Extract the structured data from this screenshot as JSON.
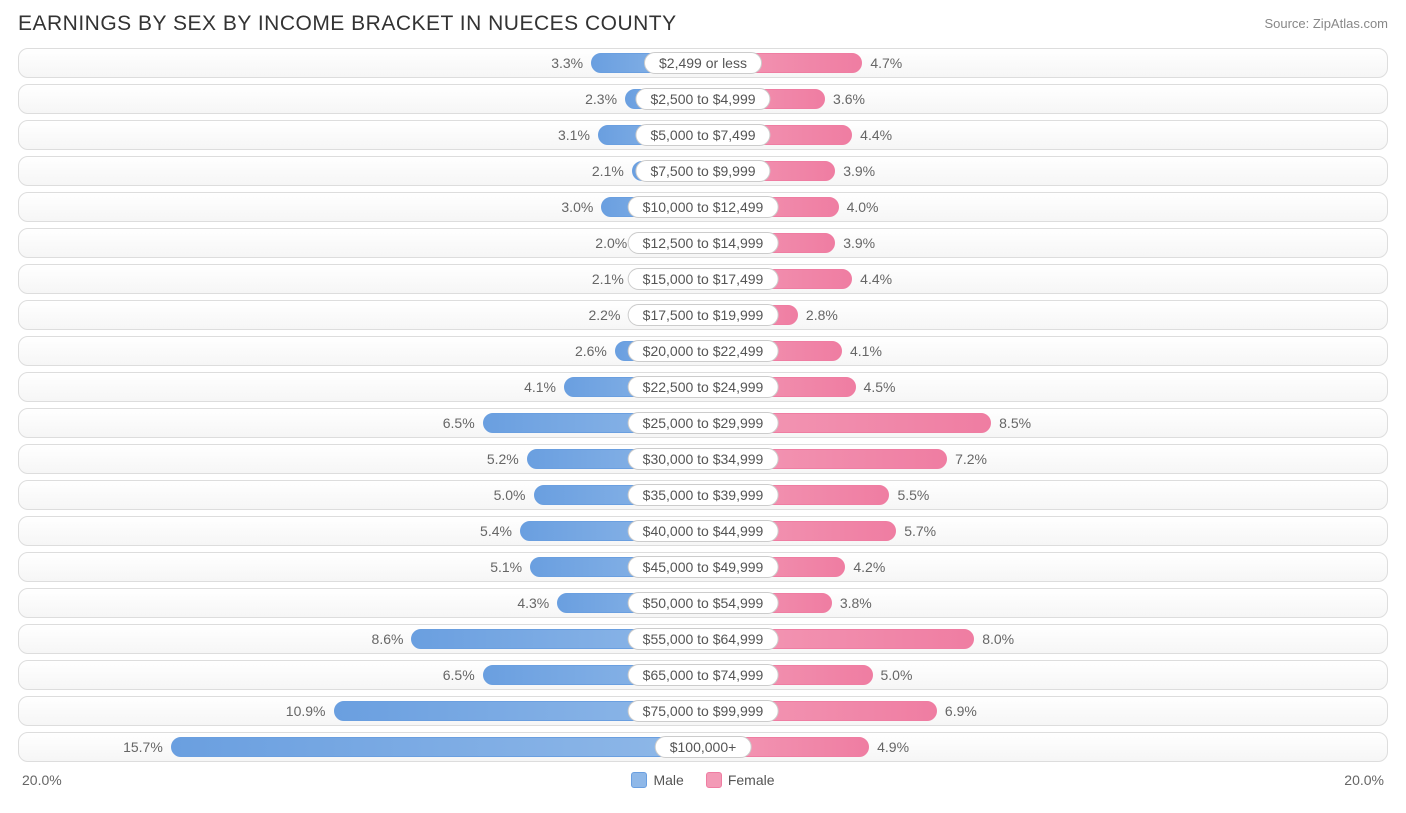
{
  "title": "EARNINGS BY SEX BY INCOME BRACKET IN NUECES COUNTY",
  "source": "Source: ZipAtlas.com",
  "axis_max_label": "20.0%",
  "axis_max_value": 20.0,
  "legend": {
    "male": "Male",
    "female": "Female"
  },
  "colors": {
    "male_base": "#8fb8e8",
    "male_border": "#6a9fe0",
    "female_base": "#f39ab6",
    "female_border": "#ef7da2",
    "row_border": "#dddddd",
    "pill_border": "#cccccc",
    "text": "#555555",
    "bg": "#ffffff"
  },
  "rows": [
    {
      "label": "$2,499 or less",
      "male": 3.3,
      "female": 4.7
    },
    {
      "label": "$2,500 to $4,999",
      "male": 2.3,
      "female": 3.6
    },
    {
      "label": "$5,000 to $7,499",
      "male": 3.1,
      "female": 4.4
    },
    {
      "label": "$7,500 to $9,999",
      "male": 2.1,
      "female": 3.9
    },
    {
      "label": "$10,000 to $12,499",
      "male": 3.0,
      "female": 4.0
    },
    {
      "label": "$12,500 to $14,999",
      "male": 2.0,
      "female": 3.9
    },
    {
      "label": "$15,000 to $17,499",
      "male": 2.1,
      "female": 4.4
    },
    {
      "label": "$17,500 to $19,999",
      "male": 2.2,
      "female": 2.8
    },
    {
      "label": "$20,000 to $22,499",
      "male": 2.6,
      "female": 4.1
    },
    {
      "label": "$22,500 to $24,999",
      "male": 4.1,
      "female": 4.5
    },
    {
      "label": "$25,000 to $29,999",
      "male": 6.5,
      "female": 8.5
    },
    {
      "label": "$30,000 to $34,999",
      "male": 5.2,
      "female": 7.2
    },
    {
      "label": "$35,000 to $39,999",
      "male": 5.0,
      "female": 5.5
    },
    {
      "label": "$40,000 to $44,999",
      "male": 5.4,
      "female": 5.7
    },
    {
      "label": "$45,000 to $49,999",
      "male": 5.1,
      "female": 4.2
    },
    {
      "label": "$50,000 to $54,999",
      "male": 4.3,
      "female": 3.8
    },
    {
      "label": "$55,000 to $64,999",
      "male": 8.6,
      "female": 8.0
    },
    {
      "label": "$65,000 to $74,999",
      "male": 6.5,
      "female": 5.0
    },
    {
      "label": "$75,000 to $99,999",
      "male": 10.9,
      "female": 6.9
    },
    {
      "label": "$100,000+",
      "male": 15.7,
      "female": 4.9
    }
  ]
}
